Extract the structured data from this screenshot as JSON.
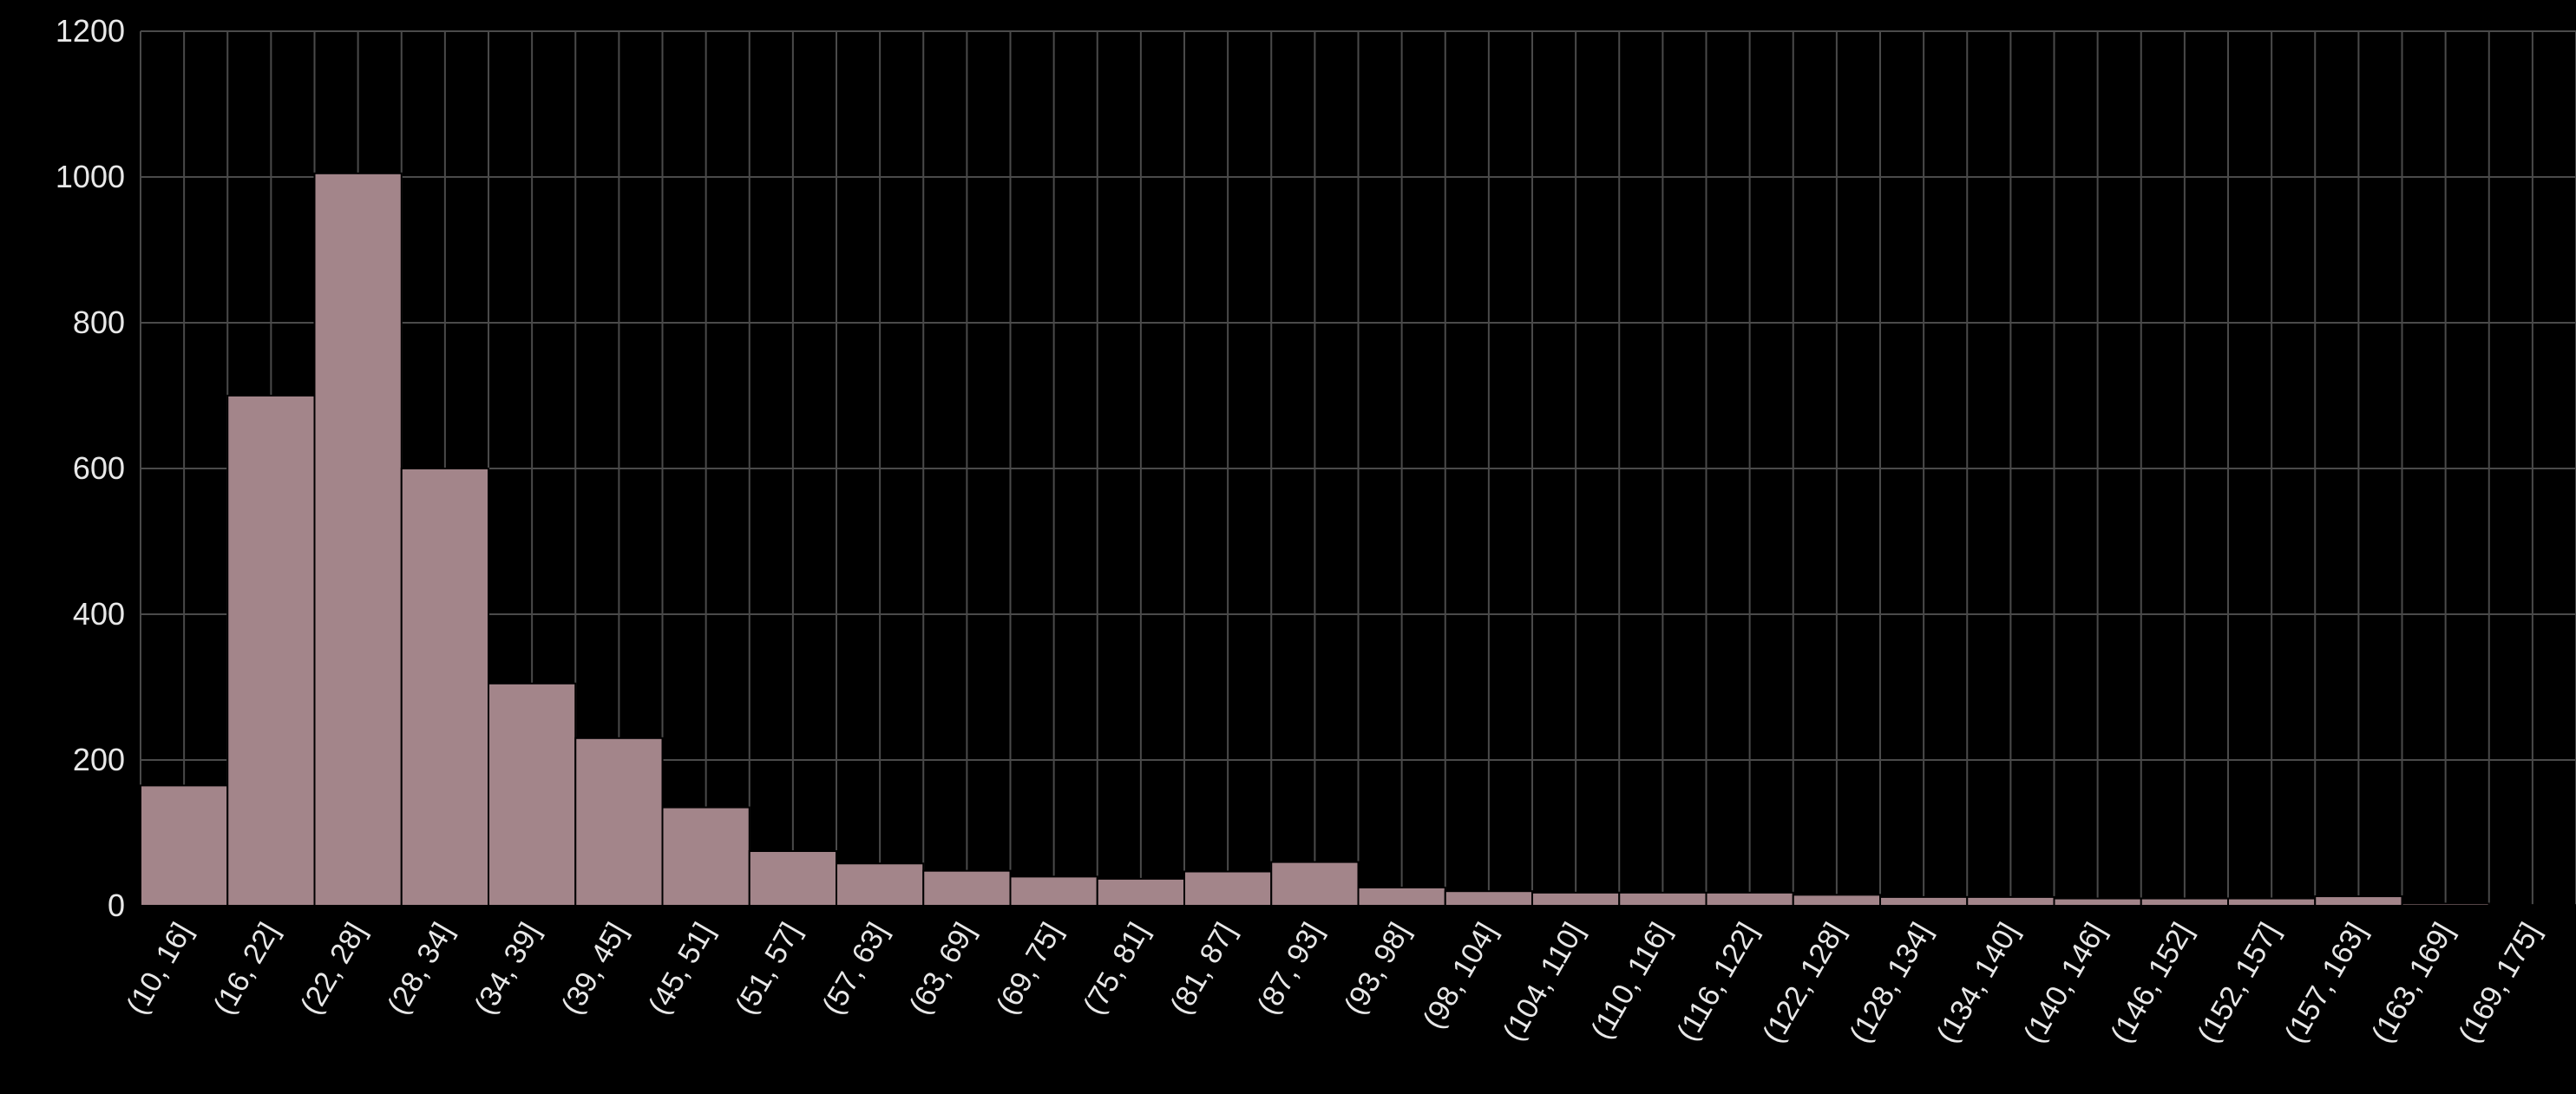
{
  "chart_data": {
    "type": "bar",
    "categories": [
      "(10, 16]",
      "(16, 22]",
      "(22, 28]",
      "(28, 34]",
      "(34, 39]",
      "(39, 45]",
      "(45, 51]",
      "(51, 57]",
      "(57, 63]",
      "(63, 69]",
      "(69, 75]",
      "(75, 81]",
      "(81, 87]",
      "(87, 93]",
      "(93, 98]",
      "(98, 104]",
      "(104, 110]",
      "(110, 116]",
      "(116, 122]",
      "(122, 128]",
      "(128, 134]",
      "(134, 140]",
      "(140, 146]",
      "(146, 152]",
      "(152, 157]",
      "(157, 163]",
      "(163, 169]",
      "(169, 175]"
    ],
    "values": [
      165,
      700,
      1005,
      600,
      305,
      230,
      135,
      75,
      58,
      48,
      40,
      37,
      47,
      60,
      25,
      20,
      18,
      18,
      18,
      15,
      12,
      12,
      10,
      10,
      10,
      13,
      3,
      1
    ],
    "title": "",
    "xlabel": "",
    "ylabel": "",
    "ylim": [
      0,
      1200
    ],
    "yticks": [
      "0",
      "200",
      "400",
      "600",
      "800",
      "1000",
      "1200"
    ],
    "grid": true,
    "colors": {
      "bar": "#a3858a",
      "background": "#000000",
      "grid": "#4a4a4a",
      "text": "#e8e8e8"
    }
  }
}
